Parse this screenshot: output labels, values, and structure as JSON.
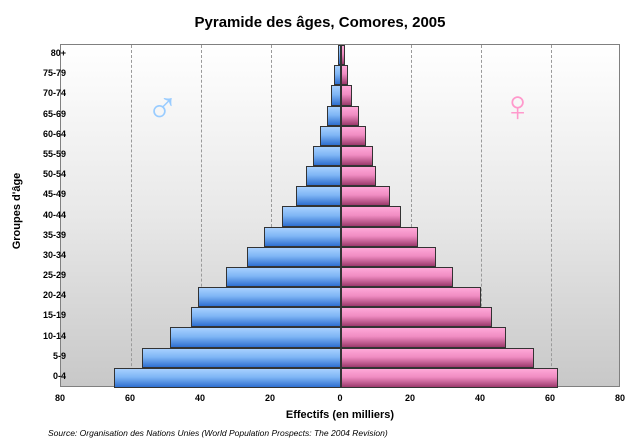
{
  "chart_data": {
    "type": "bar",
    "subtype": "population-pyramid",
    "title": "Pyramide des âges, Comores, 2005",
    "xlabel": "Effectifs (en milliers)",
    "ylabel": "Groupes d'âge",
    "source": "Source: Organisation des Nations Unies (World Population Prospects: The 2004 Revision)",
    "categories": [
      "0-4",
      "5-9",
      "10-14",
      "15-19",
      "20-24",
      "25-29",
      "30-34",
      "35-39",
      "40-44",
      "45-49",
      "50-54",
      "55-59",
      "60-64",
      "65-69",
      "70-74",
      "75-79",
      "80+"
    ],
    "series": [
      {
        "name": "Hommes",
        "symbol": "♂",
        "color": "#7fb6f5",
        "values": [
          65,
          57,
          49,
          43,
          41,
          33,
          27,
          22,
          17,
          13,
          10,
          8,
          6,
          4,
          3,
          2,
          1
        ]
      },
      {
        "name": "Femmes",
        "symbol": "♀",
        "color": "#f08cc2",
        "values": [
          62,
          55,
          47,
          43,
          40,
          32,
          27,
          22,
          17,
          14,
          10,
          9,
          7,
          5,
          3,
          2,
          1
        ]
      }
    ],
    "xticks": [
      "80",
      "60",
      "40",
      "20",
      "0",
      "20",
      "40",
      "60",
      "80"
    ],
    "xlim": [
      -80,
      80
    ],
    "grid": true,
    "legend": "gender symbols in plot"
  }
}
